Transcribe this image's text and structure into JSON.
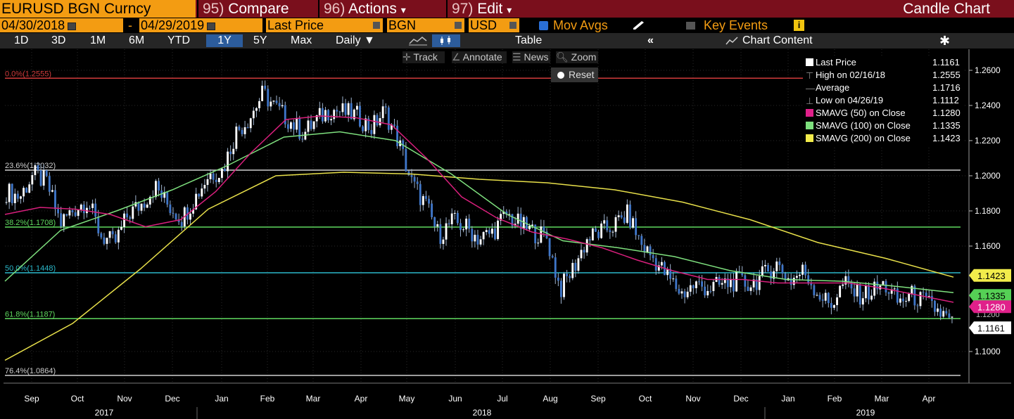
{
  "header": {
    "ticker": "EURUSD BGN Curncy",
    "compare": {
      "num": "95)",
      "label": "Compare"
    },
    "actions": {
      "num": "96)",
      "label": "Actions",
      "arrow": "▾"
    },
    "edit": {
      "num": "97)",
      "label": "Edit",
      "arrow": "▾"
    },
    "chart_title": "Candle Chart"
  },
  "options": {
    "start_date": "04/30/2018",
    "dash": "-",
    "end_date": "04/29/2019",
    "field": "Last Price",
    "source": "BGN",
    "currency": "USD",
    "mov_avgs": "Mov Avgs",
    "key_events": "Key Events"
  },
  "periods": {
    "items": [
      "1D",
      "3D",
      "1M",
      "6M",
      "YTD",
      "1Y",
      "5Y",
      "Max"
    ],
    "selected": "1Y",
    "frequency": "Daily",
    "table": "Table",
    "chart_content": "Chart Content"
  },
  "tools": {
    "track": "Track",
    "annotate": "Annotate",
    "news": "News",
    "zoom": "Zoom",
    "reset": "Reset"
  },
  "legend": [
    {
      "label": "Last Price",
      "value": "1.1161",
      "color": "#ffffff"
    },
    {
      "label": "High on 02/16/18",
      "value": "1.2555",
      "color": "#888888"
    },
    {
      "label": "Average",
      "value": "1.1716",
      "color": "#888888"
    },
    {
      "label": "Low on 04/26/19",
      "value": "1.1112",
      "color": "#888888"
    },
    {
      "label": "SMAVG (50)  on Close",
      "value": "1.1280",
      "color": "#e0208a"
    },
    {
      "label": "SMAVG (100)  on Close",
      "value": "1.1335",
      "color": "#7ee07e"
    },
    {
      "label": "SMAVG (200)  on Close",
      "value": "1.1423",
      "color": "#f2ec4b"
    }
  ],
  "chart_data": {
    "type": "candlestick",
    "y_ticks": [
      "1.2600",
      "1.2400",
      "1.2200",
      "1.2000",
      "1.1800",
      "1.1600",
      "1.1000"
    ],
    "ylim": [
      1.082,
      1.272
    ],
    "x_month_labels": [
      "Sep",
      "Oct",
      "Nov",
      "Dec",
      "Jan",
      "Feb",
      "Mar",
      "Apr",
      "May",
      "Jun",
      "Jul",
      "Aug",
      "Sep",
      "Oct",
      "Nov",
      "Dec",
      "Jan",
      "Feb",
      "Mar",
      "Apr"
    ],
    "x_year_labels": [
      "2017",
      "2018",
      "2019"
    ],
    "price_weekly": [
      1.191,
      1.188,
      1.201,
      1.196,
      1.173,
      1.181,
      1.186,
      1.166,
      1.161,
      1.178,
      1.184,
      1.194,
      1.183,
      1.176,
      1.188,
      1.201,
      1.203,
      1.225,
      1.233,
      1.247,
      1.238,
      1.231,
      1.224,
      1.232,
      1.238,
      1.236,
      1.234,
      1.227,
      1.237,
      1.22,
      1.196,
      1.184,
      1.166,
      1.174,
      1.171,
      1.164,
      1.168,
      1.178,
      1.172,
      1.168,
      1.165,
      1.135,
      1.148,
      1.164,
      1.168,
      1.172,
      1.178,
      1.161,
      1.152,
      1.142,
      1.133,
      1.138,
      1.136,
      1.138,
      1.14,
      1.138,
      1.143,
      1.15,
      1.14,
      1.146,
      1.134,
      1.126,
      1.139,
      1.132,
      1.134,
      1.138,
      1.128,
      1.132,
      1.128,
      1.123,
      1.116
    ],
    "sma_50": [
      1.178,
      1.182,
      1.181,
      1.178,
      1.171,
      1.175,
      1.191,
      1.213,
      1.232,
      1.234,
      1.233,
      1.229,
      1.21,
      1.188,
      1.176,
      1.168,
      1.164,
      1.159,
      1.152,
      1.146,
      1.141,
      1.141,
      1.139,
      1.139,
      1.139,
      1.136,
      1.132,
      1.128
    ],
    "sma_100": [
      1.14,
      1.169,
      1.18,
      1.192,
      1.206,
      1.222,
      1.225,
      1.22,
      1.201,
      1.178,
      1.163,
      1.159,
      1.154,
      1.146,
      1.141,
      1.14,
      1.137,
      1.1335
    ],
    "sma_200": [
      1.095,
      1.116,
      1.147,
      1.181,
      1.2,
      1.202,
      1.201,
      1.198,
      1.196,
      1.192,
      1.185,
      1.175,
      1.162,
      1.153,
      1.1423
    ],
    "hlines": [
      {
        "label": "0.0%(1.2555)",
        "value": 1.2555,
        "color": "#d03b3b"
      },
      {
        "label": "23.6%(1.2032)",
        "value": 1.2032,
        "color": "#cfcfcf"
      },
      {
        "label": "38.2%(1.1708)",
        "value": 1.1708,
        "color": "#5fd95f"
      },
      {
        "label": "50.0%(1.1448)",
        "value": 1.1448,
        "color": "#2ab7c9"
      },
      {
        "label": "61.8%(1.1187)",
        "value": 1.1187,
        "color": "#5fd95f"
      },
      {
        "label": "76.4%(1.0864)",
        "value": 1.0864,
        "color": "#cfcfcf"
      }
    ],
    "price_tags": [
      {
        "value": "1.1423",
        "color": "#f2ec4b",
        "text": "#000000"
      },
      {
        "value": "1.1335",
        "color": "#55d055",
        "text": "#000000"
      },
      {
        "value": "1.1280",
        "color": "#e0208a",
        "text": "#ffffff"
      },
      {
        "value": "1.1161",
        "color": "#ffffff",
        "text": "#000000"
      }
    ],
    "partial_tag": "1.1200"
  }
}
